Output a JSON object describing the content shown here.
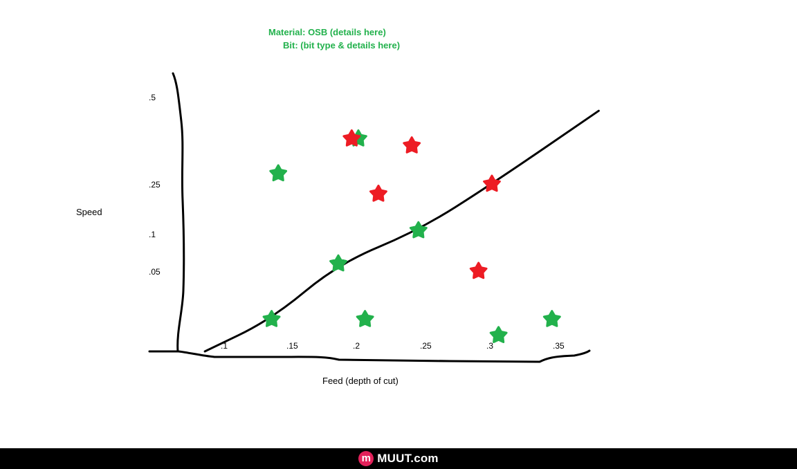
{
  "header": {
    "material_line": "Material:  OSB (details here)",
    "bit_line": "Bit: (bit type & details here)",
    "color": "#22b14c"
  },
  "chart_data": {
    "type": "scatter",
    "xlabel": "Feed (depth of cut)",
    "ylabel": "Speed",
    "x_ticks": [
      ".1",
      ".15",
      ".2",
      ".25",
      ".3",
      ".35"
    ],
    "y_ticks": [
      ".5",
      ".25",
      ".1",
      ".05"
    ],
    "grid": false,
    "series": [
      {
        "color": "#22b14c",
        "marker": "star",
        "points": [
          {
            "x": 0.14,
            "y": 0.28
          },
          {
            "x": 0.135,
            "y": 0.02
          },
          {
            "x": 0.185,
            "y": 0.06
          },
          {
            "x": 0.2,
            "y": 0.38
          },
          {
            "x": 0.205,
            "y": 0.02
          },
          {
            "x": 0.245,
            "y": 0.11
          },
          {
            "x": 0.305,
            "y": 0.01
          },
          {
            "x": 0.345,
            "y": 0.02
          }
        ]
      },
      {
        "color": "#ed1c24",
        "marker": "star",
        "points": [
          {
            "x": 0.195,
            "y": 0.38
          },
          {
            "x": 0.215,
            "y": 0.22
          },
          {
            "x": 0.24,
            "y": 0.36
          },
          {
            "x": 0.3,
            "y": 0.25
          },
          {
            "x": 0.29,
            "y": 0.05
          }
        ]
      }
    ],
    "trend_line": {
      "color": "#000000",
      "points": [
        {
          "x": 0.085,
          "y": 0.0
        },
        {
          "x": 0.135,
          "y": 0.02
        },
        {
          "x": 0.185,
          "y": 0.06
        },
        {
          "x": 0.245,
          "y": 0.11
        },
        {
          "x": 0.3,
          "y": 0.25
        },
        {
          "x": 0.38,
          "y": 0.46
        }
      ]
    }
  },
  "footer": {
    "logo_letter": "m",
    "logo_text": "MUUT.com",
    "background": "#000000",
    "logo_color": "#e2215a"
  }
}
